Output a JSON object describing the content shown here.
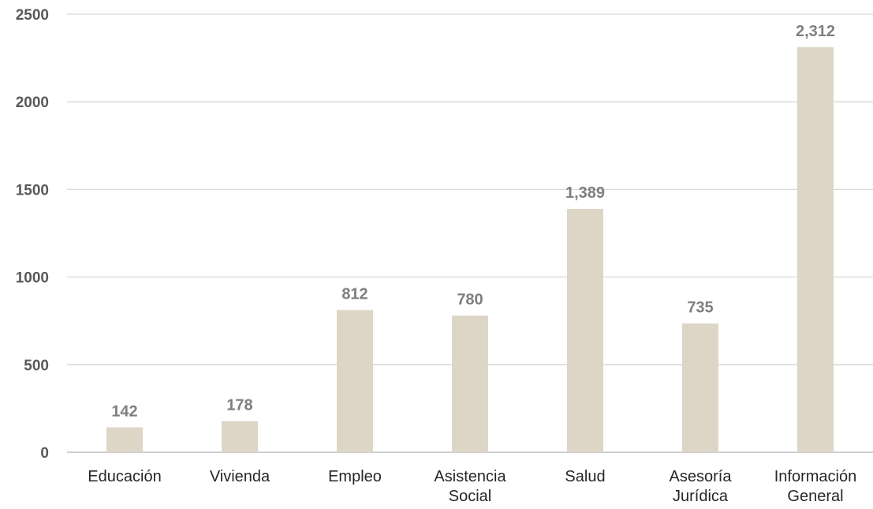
{
  "chart_data": {
    "type": "bar",
    "categories": [
      [
        "Educación"
      ],
      [
        "Vivienda"
      ],
      [
        "Empleo"
      ],
      [
        "Asistencia",
        "Social"
      ],
      [
        "Salud"
      ],
      [
        "Asesoría",
        "Jurídica"
      ],
      [
        "Información",
        "General"
      ]
    ],
    "values": [
      142,
      178,
      812,
      780,
      1389,
      735,
      2312
    ],
    "data_labels": [
      "142",
      "178",
      "812",
      "780",
      "1,389",
      "735",
      "2,312"
    ],
    "yticks": [
      0,
      500,
      1000,
      1500,
      2000,
      2500
    ],
    "ylim": [
      0,
      2500
    ],
    "title": "",
    "xlabel": "",
    "ylabel": "",
    "grid": true,
    "legend": "none",
    "colors": {
      "bar": "#ddd6c7",
      "grid": "#d9d9d9",
      "tick_text": "#595959",
      "category_text": "#262626",
      "data_label_text": "#7f7f7f"
    }
  }
}
